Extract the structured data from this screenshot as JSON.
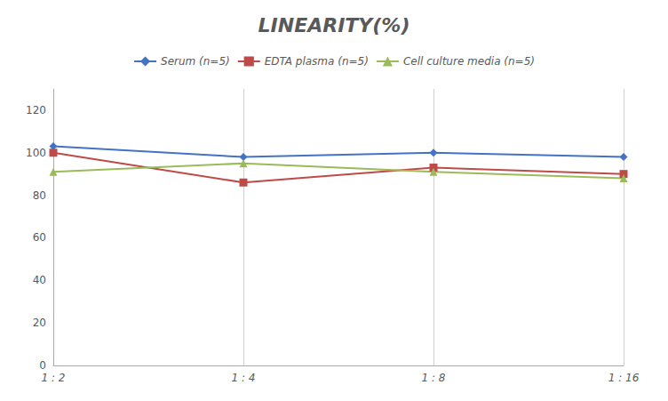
{
  "chart_data": {
    "type": "line",
    "title": "LINEARITY(%)",
    "categories": [
      "1 : 2",
      "1 : 4",
      "1 : 8",
      "1 : 16"
    ],
    "series": [
      {
        "name": "Serum (n=5)",
        "color": "#4472C4",
        "marker": "diamond",
        "values": [
          103,
          98,
          100,
          98
        ]
      },
      {
        "name": "EDTA plasma (n=5)",
        "color": "#BE4B48",
        "marker": "square",
        "values": [
          100,
          86,
          93,
          90
        ]
      },
      {
        "name": "Cell culture media (n=5)",
        "color": "#9BBB59",
        "marker": "triangle",
        "values": [
          91,
          95,
          91,
          88
        ]
      }
    ],
    "ylim": [
      0,
      130
    ],
    "yticks": [
      0,
      20,
      40,
      60,
      80,
      100,
      120
    ],
    "grid": true,
    "legend": "top"
  }
}
